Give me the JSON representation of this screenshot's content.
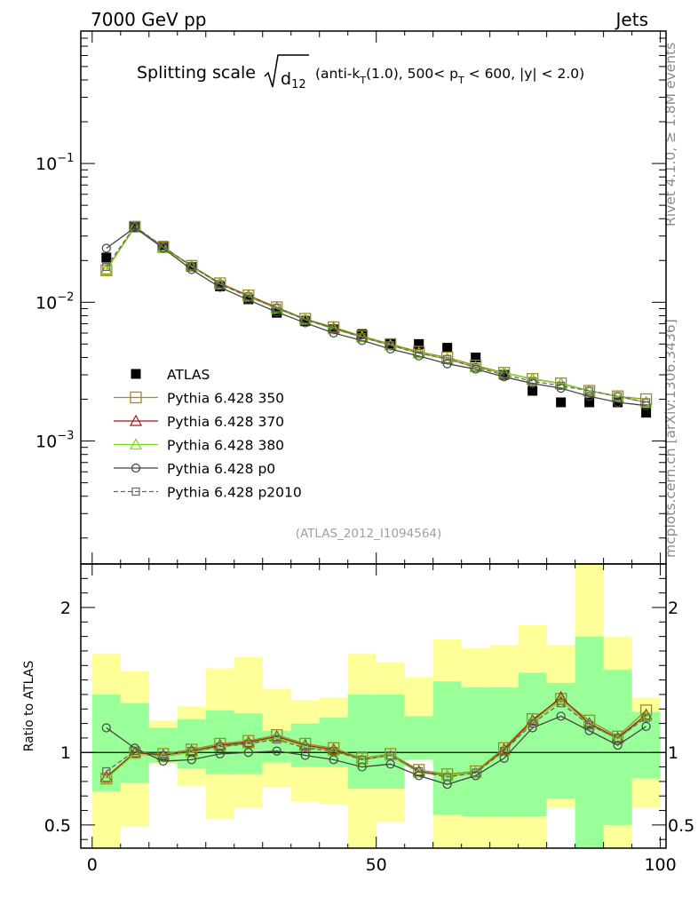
{
  "header": {
    "left": "7000 GeV pp",
    "right": "Jets"
  },
  "side": {
    "rivet": "Rivet 4.1.0, ≥ 1.8M events",
    "mcplots": "mcplots.cern.ch [arXiv:1306.3436]"
  },
  "plot": {
    "title_main": "Splitting scale",
    "title_sqrt_var": "d",
    "title_sqrt_sub": "12",
    "title_a": "(anti-k",
    "title_a_sub": "T",
    "title_b": "(1.0), 500< p",
    "title_b_sub": "T",
    "title_c": " < 600, |y| < 2.0)",
    "analysis_id": "(ATLAS_2012_I1094564)",
    "ratio_ylabel": "Ratio to ATLAS"
  },
  "colors": {
    "band_outer": "#ffff99",
    "band_inner": "#99ff99",
    "atlas": "#000000",
    "p350": "#a08c1e",
    "p370": "#a0141e",
    "p380": "#78dc14",
    "p0": "#444444",
    "p2010": "#666666"
  },
  "chart_data": {
    "type": "line",
    "x": [
      2.5,
      7.5,
      12.5,
      17.5,
      22.5,
      27.5,
      32.5,
      37.5,
      42.5,
      47.5,
      52.5,
      57.5,
      62.5,
      67.5,
      72.5,
      77.5,
      82.5,
      87.5,
      92.5,
      97.5
    ],
    "xlim": [
      -2,
      101
    ],
    "xticks": [
      0,
      50,
      100
    ],
    "main": {
      "yscale": "log",
      "ylim": [
        0.00013,
        0.9
      ],
      "ytick_labels": [
        {
          "base": "10",
          "exp": "−1"
        },
        {
          "base": "10",
          "exp": "−2"
        },
        {
          "base": "10",
          "exp": "−3"
        }
      ],
      "series": [
        {
          "name": "ATLAS",
          "key": "atlas",
          "marker": "filled-square",
          "values": [
            0.021,
            0.035,
            0.0255,
            0.018,
            0.013,
            0.0105,
            0.0084,
            0.0073,
            0.0064,
            0.0059,
            0.005,
            0.005,
            0.0047,
            0.004,
            0.003,
            0.0023,
            0.0019,
            0.0019,
            0.0019,
            0.0016
          ]
        },
        {
          "name": "Pythia 6.428 350",
          "key": "p350",
          "marker": "open-square",
          "values": [
            0.017,
            0.035,
            0.025,
            0.0183,
            0.0137,
            0.0112,
            0.0092,
            0.0076,
            0.0066,
            0.0057,
            0.005,
            0.0044,
            0.004,
            0.0035,
            0.0031,
            0.0028,
            0.0026,
            0.0023,
            0.0021,
            0.002
          ]
        },
        {
          "name": "Pythia 6.428 370",
          "key": "p370",
          "marker": "open-triangle",
          "values": [
            0.0172,
            0.0348,
            0.0248,
            0.0182,
            0.0136,
            0.0111,
            0.0091,
            0.0075,
            0.0065,
            0.0056,
            0.0049,
            0.0043,
            0.0039,
            0.0034,
            0.0031,
            0.0028,
            0.0026,
            0.0023,
            0.0021,
            0.0019
          ]
        },
        {
          "name": "Pythia 6.428 380",
          "key": "p380",
          "marker": "open-triangle",
          "values": [
            0.0171,
            0.0347,
            0.0247,
            0.0181,
            0.0135,
            0.011,
            0.009,
            0.0075,
            0.0064,
            0.0056,
            0.0049,
            0.0043,
            0.0039,
            0.0034,
            0.0031,
            0.0028,
            0.0026,
            0.0023,
            0.0021,
            0.0019
          ]
        },
        {
          "name": "Pythia 6.428 p0",
          "key": "p0",
          "marker": "open-circle",
          "values": [
            0.0245,
            0.0345,
            0.0245,
            0.0172,
            0.0128,
            0.0104,
            0.0085,
            0.0071,
            0.006,
            0.0053,
            0.0046,
            0.0041,
            0.0036,
            0.0033,
            0.0029,
            0.0026,
            0.0024,
            0.0021,
            0.0019,
            0.0018
          ]
        },
        {
          "name": "Pythia 6.428 p2010",
          "key": "p2010",
          "marker": "open-square-dashed",
          "values": [
            0.018,
            0.0352,
            0.0252,
            0.0182,
            0.0135,
            0.011,
            0.0091,
            0.0075,
            0.0065,
            0.0056,
            0.0049,
            0.0043,
            0.0039,
            0.0034,
            0.003,
            0.0027,
            0.0025,
            0.0023,
            0.0021,
            0.0019
          ]
        }
      ]
    },
    "ratio": {
      "ylim": [
        0.34,
        2.3
      ],
      "yticks": [
        0.5,
        1,
        2
      ],
      "ytick_labels": [
        "0.5",
        "1",
        "2"
      ],
      "band_outer": {
        "lo": [
          0.0,
          0.49,
          0.92,
          0.77,
          0.54,
          0.62,
          0.76,
          0.66,
          0.64,
          0.0,
          0.52,
          0.97,
          0.0,
          0.0,
          0.0,
          0.0,
          0.62,
          0.0,
          0.0,
          0.62
        ],
        "hi": [
          1.68,
          1.56,
          1.22,
          1.32,
          1.58,
          1.66,
          1.44,
          1.36,
          1.38,
          1.68,
          1.62,
          1.52,
          1.78,
          1.72,
          1.74,
          1.88,
          1.74,
          2.4,
          1.8,
          1.38
        ]
      },
      "band_inner": {
        "lo": [
          0.73,
          0.79,
          0.93,
          0.89,
          0.85,
          0.85,
          0.93,
          0.9,
          0.9,
          0.75,
          0.75,
          0.95,
          0.57,
          0.56,
          0.56,
          0.56,
          0.68,
          0.0,
          0.5,
          0.82
        ],
        "hi": [
          1.4,
          1.34,
          1.17,
          1.23,
          1.29,
          1.27,
          1.15,
          1.2,
          1.24,
          1.4,
          1.4,
          1.25,
          1.49,
          1.45,
          1.45,
          1.55,
          1.48,
          1.8,
          1.57,
          1.28
        ]
      },
      "series": [
        {
          "key": "p350",
          "values": [
            0.82,
            1.0,
            0.99,
            1.02,
            1.06,
            1.08,
            1.12,
            1.06,
            1.03,
            0.96,
            0.99,
            0.88,
            0.85,
            0.87,
            1.03,
            1.23,
            1.37,
            1.22,
            1.11,
            1.29
          ]
        },
        {
          "key": "p370",
          "values": [
            0.83,
            1.0,
            0.98,
            1.01,
            1.05,
            1.07,
            1.11,
            1.05,
            1.02,
            0.95,
            0.98,
            0.87,
            0.84,
            0.86,
            1.02,
            1.22,
            1.38,
            1.2,
            1.1,
            1.26
          ]
        },
        {
          "key": "p380",
          "values": [
            0.82,
            0.99,
            0.97,
            1.0,
            1.04,
            1.06,
            1.1,
            1.04,
            1.01,
            0.95,
            0.98,
            0.86,
            0.84,
            0.86,
            1.01,
            1.21,
            1.36,
            1.19,
            1.09,
            1.25
          ]
        },
        {
          "key": "p0",
          "values": [
            1.17,
            1.03,
            0.94,
            0.95,
            0.99,
            1.0,
            1.01,
            0.98,
            0.95,
            0.9,
            0.92,
            0.84,
            0.78,
            0.84,
            0.96,
            1.17,
            1.25,
            1.15,
            1.05,
            1.18
          ]
        },
        {
          "key": "p2010",
          "values": [
            0.87,
            1.01,
            0.98,
            1.01,
            1.04,
            1.06,
            1.09,
            1.03,
            1.01,
            0.95,
            0.98,
            0.87,
            0.83,
            0.86,
            1.01,
            1.2,
            1.34,
            1.19,
            1.1,
            1.24
          ]
        }
      ]
    }
  }
}
